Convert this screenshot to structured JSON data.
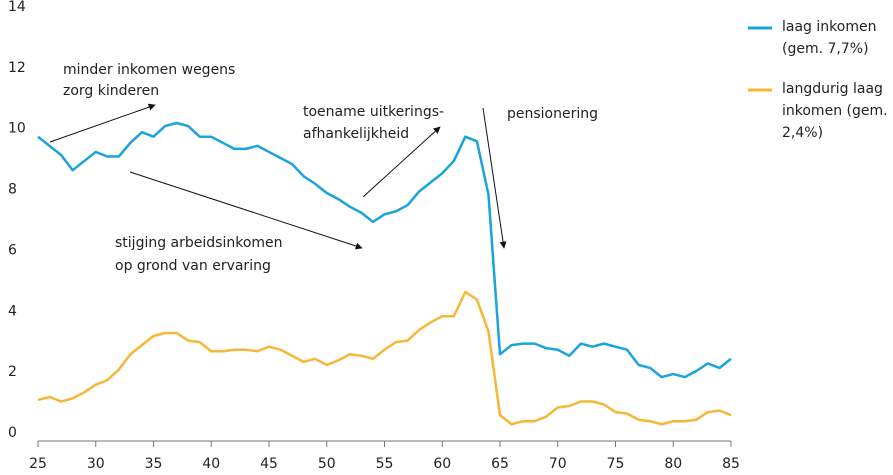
{
  "chart_data": {
    "type": "line",
    "x": [
      25,
      26,
      27,
      28,
      29,
      30,
      31,
      32,
      33,
      34,
      35,
      36,
      37,
      38,
      39,
      40,
      41,
      42,
      43,
      44,
      45,
      46,
      47,
      48,
      49,
      50,
      51,
      52,
      53,
      54,
      55,
      56,
      57,
      58,
      59,
      60,
      61,
      62,
      63,
      64,
      65,
      66,
      67,
      68,
      69,
      70,
      71,
      72,
      73,
      74,
      75,
      76,
      77,
      78,
      79,
      80,
      81,
      82,
      83,
      84,
      85
    ],
    "series": [
      {
        "name": "laag inkomen (gem. 7,7%)",
        "color": "#1aa3dc",
        "values": [
          10.0,
          9.7,
          9.4,
          8.9,
          9.2,
          9.5,
          9.35,
          9.35,
          9.8,
          10.15,
          10.0,
          10.35,
          10.45,
          10.35,
          10.0,
          10.0,
          9.8,
          9.6,
          9.6,
          9.7,
          9.5,
          9.3,
          9.1,
          8.7,
          8.45,
          8.15,
          7.95,
          7.7,
          7.5,
          7.2,
          7.45,
          7.55,
          7.75,
          8.2,
          8.5,
          8.8,
          9.2,
          10.0,
          9.85,
          8.1,
          2.85,
          3.15,
          3.2,
          3.2,
          3.05,
          3.0,
          2.8,
          3.2,
          3.1,
          3.2,
          3.1,
          3.0,
          2.5,
          2.4,
          2.1,
          2.2,
          2.1,
          2.3,
          2.55,
          2.4,
          2.7
        ]
      },
      {
        "name": "langdurig laag inkomen (gem. 2,4%)",
        "color": "#f6b737",
        "values": [
          1.35,
          1.45,
          1.3,
          1.4,
          1.6,
          1.85,
          2.0,
          2.35,
          2.85,
          3.15,
          3.45,
          3.55,
          3.55,
          3.3,
          3.25,
          2.95,
          2.95,
          3.0,
          3.0,
          2.95,
          3.1,
          3.0,
          2.8,
          2.6,
          2.7,
          2.5,
          2.65,
          2.85,
          2.8,
          2.7,
          3.0,
          3.25,
          3.3,
          3.65,
          3.9,
          4.1,
          4.1,
          4.9,
          4.65,
          3.6,
          0.85,
          0.55,
          0.65,
          0.65,
          0.8,
          1.1,
          1.15,
          1.3,
          1.3,
          1.2,
          0.95,
          0.9,
          0.7,
          0.65,
          0.55,
          0.65,
          0.65,
          0.7,
          0.95,
          1.0,
          0.85
        ]
      }
    ],
    "xlim": [
      25,
      85
    ],
    "xticks": [
      25,
      30,
      35,
      40,
      45,
      50,
      55,
      60,
      65,
      70,
      75,
      80,
      85
    ],
    "ylim": [
      0,
      14
    ],
    "yticks": [
      0,
      2,
      4,
      6,
      8,
      10,
      12,
      14
    ],
    "grid": false,
    "legend": "right",
    "annotations": [
      {
        "lines": [
          "minder inkomen wegens",
          "zorg kinderen"
        ]
      },
      {
        "lines": [
          "stijging arbeidsinkomen",
          "op grond van ervaring"
        ]
      },
      {
        "lines": [
          "toename uitkerings-",
          "afhankelijkheid"
        ]
      },
      {
        "lines": [
          "pensionering"
        ]
      }
    ]
  }
}
